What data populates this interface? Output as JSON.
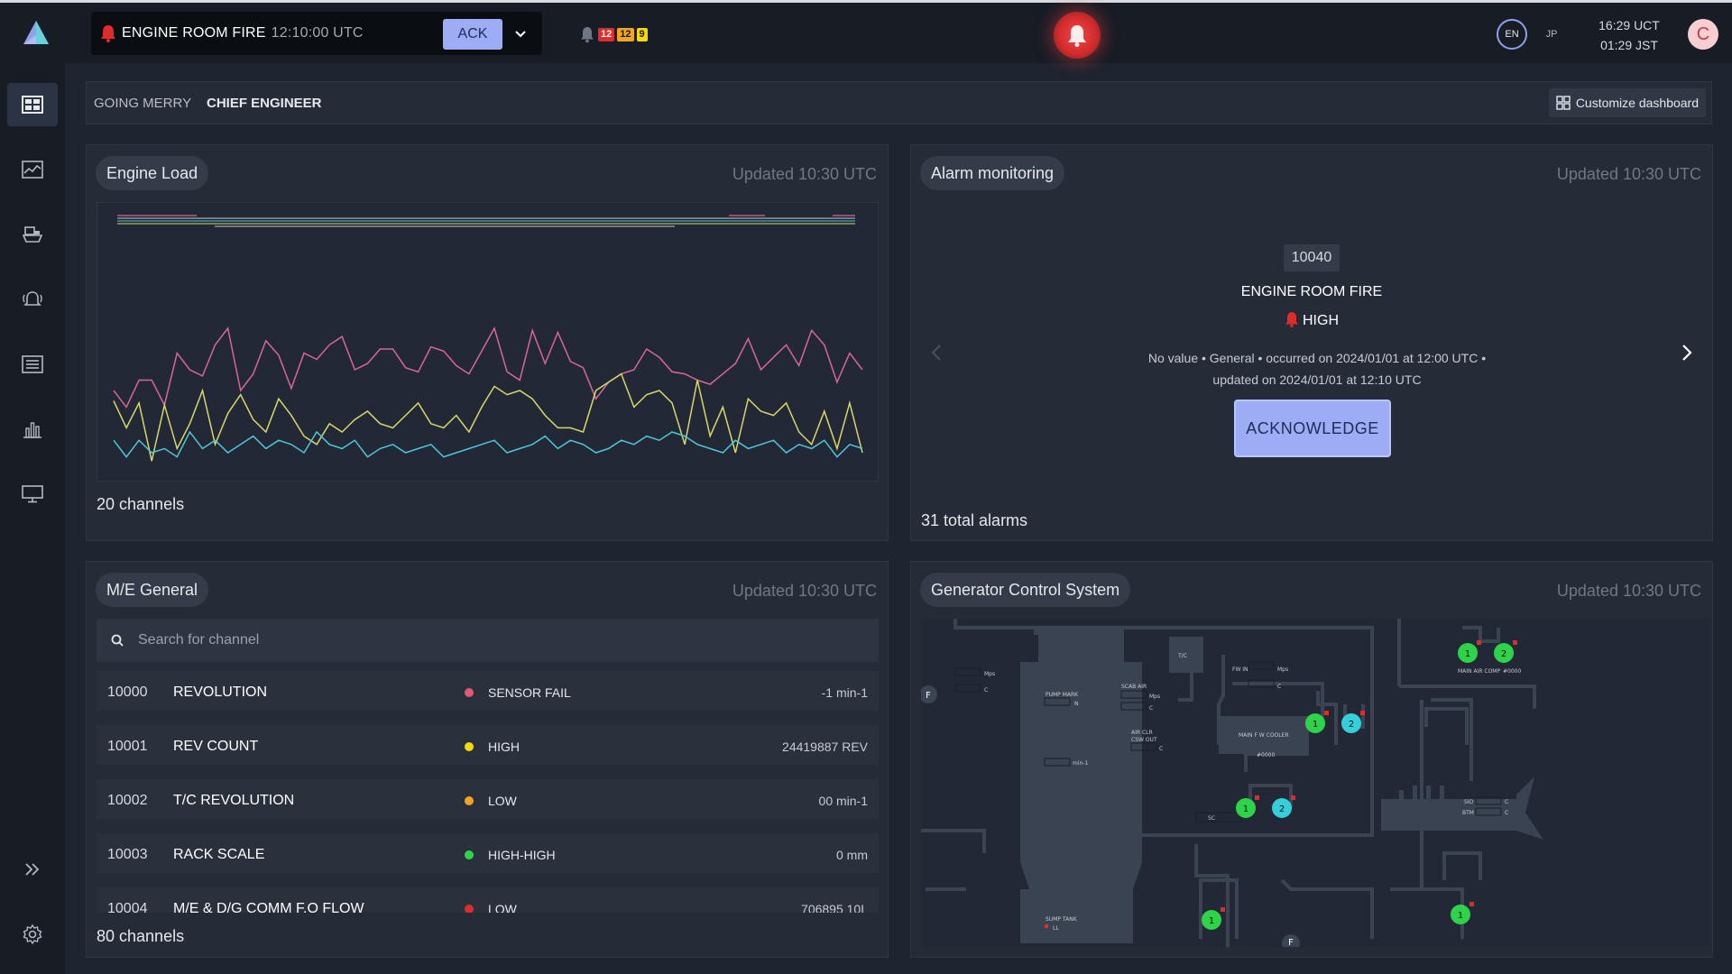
{
  "topbar": {
    "active_alarm": {
      "title": "ENGINE ROOM FIRE",
      "time": "12:10:00 UTC"
    },
    "ack_label": "ACK",
    "counts": {
      "critical": "12",
      "high": "12",
      "warning": "9"
    },
    "languages": [
      "EN",
      "JP"
    ],
    "clock": {
      "utc": "16:29 UCT",
      "local": "01:29 JST"
    },
    "user_initial": "C",
    "colors": {
      "critical": "#e02b2b",
      "high": "#f2a423",
      "warning": "#f5d90a",
      "accent": "#9cacf5"
    }
  },
  "sidebar": {
    "items": [
      "dashboard-icon",
      "trend-icon",
      "ship-icon",
      "alarm-icon",
      "list-icon",
      "bar-chart-icon",
      "monitor-icon"
    ],
    "expand": "double-chevron-icon",
    "settings": "gear-icon"
  },
  "breadcrumb": {
    "vessel": "GOING MERRY",
    "role": "CHIEF ENGINEER"
  },
  "customize_label": "Customize dashboard",
  "engine_load": {
    "title": "Engine Load",
    "updated": "Updated 10:30 UTC",
    "footer": "20 channels"
  },
  "alarm_monitoring": {
    "title": "Alarm monitoring",
    "updated": "Updated 10:30 UTC",
    "code": "10040",
    "name": "ENGINE ROOM FIRE",
    "severity": "HIGH",
    "desc_line1": "No value • General • occurred on 2024/01/01 at 12:00 UTC •",
    "desc_line2": "updated on 2024/01/01 at 12:10 UTC",
    "ack_label": "ACKNOWLEDGE",
    "footer": "31 total alarms"
  },
  "me_general": {
    "title": "M/E General",
    "updated": "Updated 10:30 UTC",
    "search_placeholder": "Search for channel",
    "rows": [
      {
        "id": "10000",
        "name": "REVOLUTION",
        "status": "SENSOR FAIL",
        "color": "#e05a78",
        "value": "-1 min-1"
      },
      {
        "id": "10001",
        "name": "REV COUNT",
        "status": "HIGH",
        "color": "#f5d90a",
        "value": "24419887 REV"
      },
      {
        "id": "10002",
        "name": "T/C REVOLUTION",
        "status": "LOW",
        "color": "#f2a423",
        "value": "00 min-1"
      },
      {
        "id": "10003",
        "name": "RACK SCALE",
        "status": "HIGH-HIGH",
        "color": "#2fd34a",
        "value": "0 mm"
      },
      {
        "id": "10004",
        "name": "M/E & D/G COMM F.O FLOW",
        "status": "LOW",
        "color": "#e02b2b",
        "value": "706895 10L"
      }
    ],
    "footer": "80 channels"
  },
  "generator": {
    "title": "Generator Control System",
    "updated": "Updated 10:30 UTC",
    "labels": {
      "tc": "T/C",
      "fw_in": "FW IN",
      "mps": "Mps",
      "c": "C",
      "n": "N",
      "min": "min-1",
      "pump_mark": "PUMP MARK",
      "scab_air": "SCAB AIR",
      "air_clr": "AIR CLR",
      "csw_out": "CSW OUT",
      "cooler": "MAIN F W COOLER",
      "cooler_id": "#0000",
      "sc": "SC",
      "sump": "SUMP TANK",
      "ll": "LL",
      "air_comp": "MAIN AIR COMP",
      "air_comp_id": "#0000",
      "sid": "SID",
      "btm": "BTM",
      "f": "F",
      "one": "1",
      "two": "2"
    }
  },
  "chart_data": {
    "type": "line",
    "x": [
      1,
      2,
      3,
      4,
      5,
      6,
      7,
      8,
      9,
      10,
      11,
      12,
      13,
      14,
      15,
      16,
      17,
      18,
      19,
      20,
      21,
      22,
      23,
      24,
      25,
      26,
      27,
      28,
      29,
      30,
      31,
      32,
      33,
      34,
      35,
      36,
      37,
      38,
      39,
      40,
      41,
      42,
      43,
      44,
      45,
      46,
      47,
      48,
      49,
      50,
      51,
      52,
      53,
      54,
      55,
      56,
      57,
      58,
      59,
      60
    ],
    "ylim": [
      0,
      100
    ],
    "series": [
      {
        "color": "#d8669c",
        "values": [
          40,
          32,
          45,
          45,
          33,
          58,
          50,
          47,
          62,
          70,
          40,
          48,
          64,
          57,
          41,
          58,
          55,
          62,
          66,
          50,
          53,
          60,
          60,
          51,
          49,
          61,
          59,
          52,
          48,
          59,
          70,
          49,
          45,
          69,
          53,
          68,
          54,
          51,
          36,
          44,
          48,
          50,
          60,
          56,
          49,
          48,
          45,
          43,
          48,
          53,
          65,
          50,
          56,
          62,
          52,
          69,
          62,
          44,
          58,
          50
        ]
      },
      {
        "color": "#d8d86a",
        "values": [
          35,
          22,
          34,
          6,
          33,
          12,
          24,
          40,
          14,
          29,
          38,
          26,
          20,
          36,
          28,
          18,
          14,
          24,
          20,
          26,
          30,
          24,
          22,
          28,
          34,
          24,
          22,
          28,
          20,
          32,
          42,
          38,
          40,
          36,
          28,
          22,
          22,
          20,
          40,
          44,
          48,
          32,
          38,
          40,
          34,
          14,
          45,
          18,
          32,
          10,
          36,
          30,
          28,
          34,
          20,
          14,
          30,
          12,
          34,
          10
        ]
      },
      {
        "color": "#4ec7d8",
        "values": [
          16,
          8,
          16,
          10,
          12,
          8,
          20,
          12,
          16,
          10,
          14,
          18,
          12,
          16,
          14,
          10,
          20,
          14,
          12,
          16,
          8,
          12,
          14,
          10,
          12,
          14,
          8,
          10,
          12,
          14,
          16,
          10,
          12,
          14,
          18,
          12,
          16,
          14,
          10,
          12,
          16,
          14,
          18,
          16,
          20,
          18,
          14,
          12,
          10,
          16,
          12,
          14,
          16,
          10,
          14,
          12,
          16,
          8,
          14,
          12
        ]
      }
    ]
  }
}
